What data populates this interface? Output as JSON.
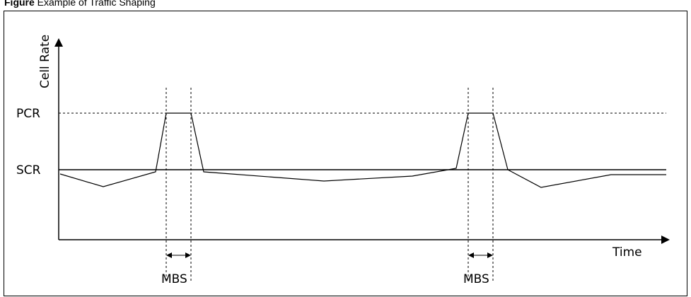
{
  "figure": {
    "caption_label": "Figure",
    "caption_text": "   Example of Traffic Shaping"
  },
  "diagram": {
    "y_axis_label": "Cell Rate",
    "x_axis_label": "Time",
    "pcr_label": "PCR",
    "scr_label": "SCR",
    "mbs_label_1": "MBS",
    "mbs_label_2": "MBS"
  }
}
